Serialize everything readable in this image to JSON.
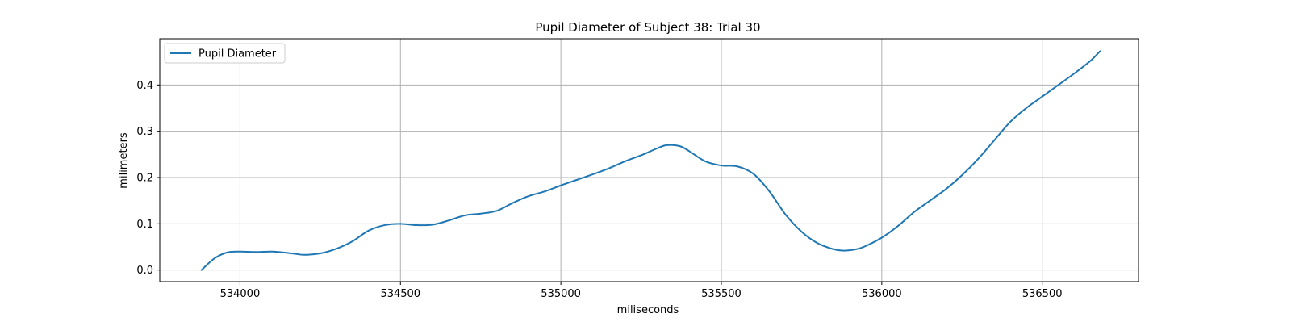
{
  "chart_data": {
    "type": "line",
    "title": "Pupil Diameter of Subject 38: Trial 30",
    "xlabel": "miliseconds",
    "ylabel": "milimeters",
    "xlim": [
      533750,
      536800
    ],
    "ylim": [
      -0.025,
      0.5
    ],
    "xticks": [
      534000,
      534500,
      535000,
      535500,
      536000,
      536500
    ],
    "yticks": [
      0.0,
      0.1,
      0.2,
      0.3,
      0.4
    ],
    "ytick_labels": [
      "0.0",
      "0.1",
      "0.2",
      "0.3",
      "0.4"
    ],
    "grid": true,
    "legend_position": "upper-left",
    "series": [
      {
        "name": "Pupil Diameter",
        "color": "#1f77b4",
        "x": [
          533880,
          533920,
          533960,
          534000,
          534050,
          534100,
          534150,
          534200,
          534250,
          534300,
          534350,
          534400,
          534450,
          534500,
          534550,
          534600,
          534650,
          534700,
          534750,
          534800,
          534850,
          534900,
          534950,
          535000,
          535050,
          535100,
          535150,
          535200,
          535250,
          535300,
          535330,
          535370,
          535400,
          535450,
          535500,
          535550,
          535600,
          535650,
          535700,
          535750,
          535800,
          535850,
          535880,
          535920,
          535950,
          536000,
          536050,
          536100,
          536150,
          536200,
          536250,
          536300,
          536350,
          536400,
          536450,
          536500,
          536550,
          536600,
          536650,
          536680
        ],
        "y": [
          0.0,
          0.025,
          0.038,
          0.04,
          0.039,
          0.04,
          0.037,
          0.033,
          0.036,
          0.046,
          0.062,
          0.085,
          0.097,
          0.1,
          0.097,
          0.098,
          0.107,
          0.118,
          0.122,
          0.128,
          0.145,
          0.16,
          0.17,
          0.183,
          0.195,
          0.207,
          0.22,
          0.235,
          0.248,
          0.263,
          0.27,
          0.268,
          0.257,
          0.235,
          0.226,
          0.224,
          0.208,
          0.17,
          0.12,
          0.083,
          0.058,
          0.045,
          0.042,
          0.045,
          0.052,
          0.07,
          0.095,
          0.125,
          0.15,
          0.175,
          0.205,
          0.24,
          0.28,
          0.32,
          0.35,
          0.375,
          0.4,
          0.425,
          0.452,
          0.473
        ]
      }
    ]
  }
}
